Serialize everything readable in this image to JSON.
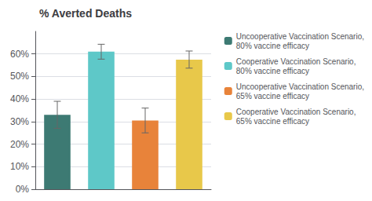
{
  "chart_data": {
    "type": "bar",
    "title": "% Averted Deaths",
    "series": [
      {
        "name": "Uncooperative Vaccination Scenario,\n80% vaccine efficacy",
        "color": "#3d7a73",
        "values": [
          0.33
        ],
        "errors": [
          0.06
        ]
      },
      {
        "name": "Cooperative Vaccination Scenario,\n80% vaccine efficacy",
        "color": "#5ec8c8",
        "values": [
          0.61
        ],
        "errors": [
          0.033
        ]
      },
      {
        "name": "Uncooperative Vaccination Scenario,\n65% vaccine efficacy",
        "color": "#e8833a",
        "values": [
          0.305
        ],
        "errors": [
          0.055
        ]
      },
      {
        "name": "Cooperative Vaccination Scenario,\n65% vaccine efficacy",
        "color": "#e8c84a",
        "values": [
          0.575
        ],
        "errors": [
          0.038
        ]
      }
    ],
    "ylim": [
      0,
      0.7
    ],
    "yticks": [
      {
        "value": 0.0,
        "label": "0%"
      },
      {
        "value": 0.1,
        "label": "10%"
      },
      {
        "value": 0.2,
        "label": "20%"
      },
      {
        "value": 0.3,
        "label": "30%"
      },
      {
        "value": 0.4,
        "label": "40%"
      },
      {
        "value": 0.5,
        "label": "50%"
      },
      {
        "value": 0.6,
        "label": "60%"
      }
    ],
    "grid": true,
    "legend": "right",
    "tick_labels": "y"
  }
}
